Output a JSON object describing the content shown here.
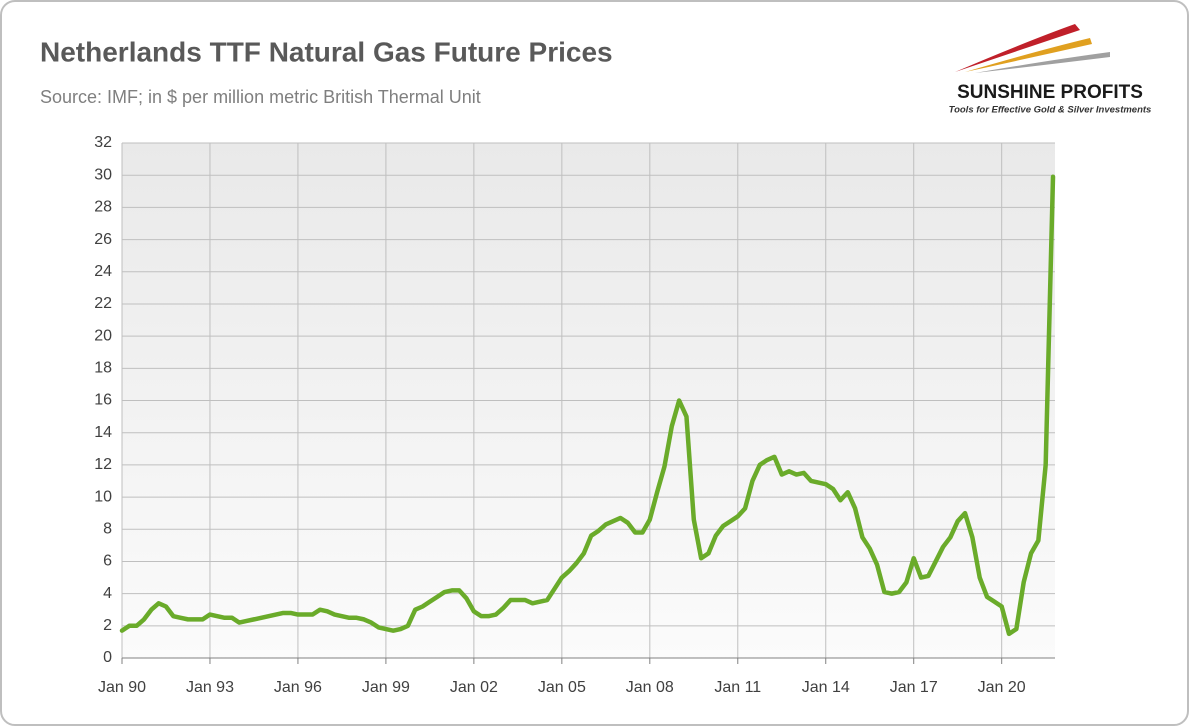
{
  "chart_data": {
    "type": "line",
    "title": "Netherlands TTF Natural Gas Future Prices",
    "subtitle": "Source: IMF; in $ per million metric British Thermal Unit",
    "categories": [
      "Jan 90",
      null,
      null,
      null,
      null,
      null,
      null,
      null,
      null,
      null,
      null,
      null,
      "Jan 93",
      null,
      null,
      null,
      null,
      null,
      null,
      null,
      null,
      null,
      null,
      null,
      "Jan 96",
      null,
      null,
      null,
      null,
      null,
      null,
      null,
      null,
      null,
      null,
      null,
      "Jan 99",
      null,
      null,
      null,
      null,
      null,
      null,
      null,
      null,
      null,
      null,
      null,
      "Jan 02",
      null,
      null,
      null,
      null,
      null,
      null,
      null,
      null,
      null,
      null,
      null,
      "Jan 05",
      null,
      null,
      null,
      null,
      null,
      null,
      null,
      null,
      null,
      null,
      null,
      "Jan 08",
      null,
      null,
      null,
      null,
      null,
      null,
      null,
      null,
      null,
      null,
      null,
      "Jan 11",
      null,
      null,
      null,
      null,
      null,
      null,
      null,
      null,
      null,
      null,
      null,
      "Jan 14",
      null,
      null,
      null,
      null,
      null,
      null,
      null,
      null,
      null,
      null,
      null,
      "Jan 17",
      null,
      null,
      null,
      null,
      null,
      null,
      null,
      null,
      null,
      null,
      null,
      "Jan 20",
      null,
      null,
      null,
      null,
      null,
      null,
      null
    ],
    "series": [
      {
        "name": "TTF",
        "color": "#6aab2a",
        "values": [
          1.7,
          2.0,
          2.0,
          2.4,
          3.0,
          3.4,
          3.2,
          2.6,
          2.5,
          2.4,
          2.4,
          2.4,
          2.7,
          2.6,
          2.5,
          2.5,
          2.2,
          2.3,
          2.4,
          2.5,
          2.6,
          2.7,
          2.8,
          2.8,
          2.7,
          2.7,
          2.7,
          3.0,
          2.9,
          2.7,
          2.6,
          2.5,
          2.5,
          2.4,
          2.2,
          1.9,
          1.8,
          1.7,
          1.8,
          2.0,
          3.0,
          3.2,
          3.5,
          3.8,
          4.1,
          4.2,
          4.2,
          3.7,
          2.9,
          2.6,
          2.6,
          2.7,
          3.1,
          3.6,
          3.6,
          3.6,
          3.4,
          3.5,
          3.6,
          4.3,
          5.0,
          5.4,
          5.9,
          6.5,
          7.6,
          7.9,
          8.3,
          8.5,
          8.7,
          8.4,
          7.8,
          7.8,
          8.6,
          10.3,
          11.9,
          14.4,
          16.0,
          15.0,
          8.6,
          6.2,
          6.5,
          7.6,
          8.2,
          8.5,
          8.8,
          9.3,
          11.0,
          12.0,
          12.3,
          12.5,
          11.4,
          11.6,
          11.4,
          11.5,
          11.0,
          10.9,
          10.8,
          10.5,
          9.8,
          10.3,
          9.3,
          7.5,
          6.8,
          5.8,
          4.1,
          4.0,
          4.1,
          4.7,
          6.2,
          5.0,
          5.1,
          6.0,
          6.9,
          7.5,
          8.5,
          9.0,
          7.5,
          5.0,
          3.8,
          3.5,
          3.2,
          1.5,
          1.8,
          4.7,
          6.5,
          7.3,
          12.0,
          29.9
        ]
      }
    ],
    "ylim": [
      0,
      32
    ],
    "yticks": [
      0,
      2,
      4,
      6,
      8,
      10,
      12,
      14,
      16,
      18,
      20,
      22,
      24,
      26,
      28,
      30,
      32
    ],
    "grid": true
  },
  "logo": {
    "name": "SUNSHINE PROFITS",
    "tagline": "Tools for Effective Gold & Silver Investments"
  }
}
